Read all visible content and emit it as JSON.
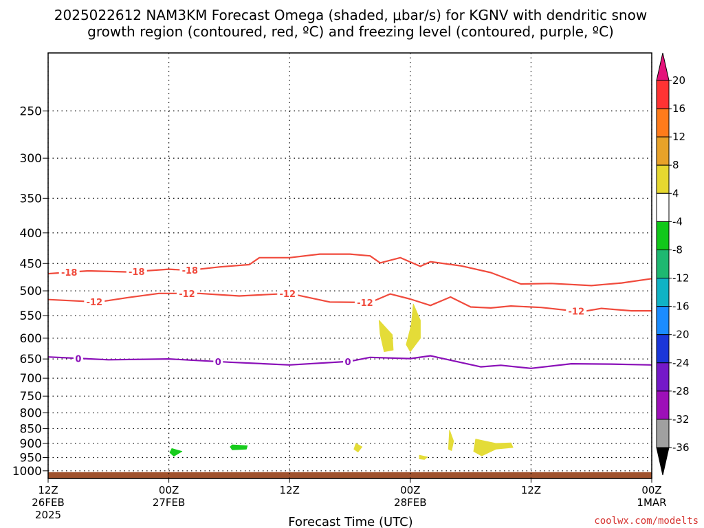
{
  "title_line1": "2025022612 NAM3KM Forecast Omega (shaded, μbar/s) for KGNV with dendritic snow",
  "title_line2": "growth region (contoured, red, ºC) and freezing level (contoured, purple, ºC)",
  "credit": "coolwx.com/modelts",
  "colors": {
    "red_contour": "#f04a3c",
    "purple_contour": "#8a0fb8",
    "ground": "#a0522d",
    "yellow": "#e4dc38",
    "green": "#17cc1c"
  },
  "chart_data": {
    "type": "time-pressure cross section",
    "xlabel": "Forecast Time (UTC)",
    "x_ticks": [
      {
        "hour": 0,
        "line1": "12Z",
        "line2": "26FEB",
        "line3": "2025"
      },
      {
        "hour": 12,
        "line1": "00Z",
        "line2": "27FEB",
        "line3": ""
      },
      {
        "hour": 24,
        "line1": "12Z",
        "line2": "",
        "line3": ""
      },
      {
        "hour": 36,
        "line1": "00Z",
        "line2": "28FEB",
        "line3": ""
      },
      {
        "hour": 48,
        "line1": "12Z",
        "line2": "",
        "line3": ""
      },
      {
        "hour": 60,
        "line1": "00Z",
        "line2": "1MAR",
        "line3": ""
      }
    ],
    "xlim_hours": [
      0,
      60
    ],
    "y_ticks": [
      250,
      300,
      350,
      400,
      450,
      500,
      550,
      600,
      650,
      700,
      750,
      800,
      850,
      900,
      950,
      1000
    ],
    "ylim_hPa": [
      200,
      1030
    ],
    "y_scale": "log-pressure",
    "grid": "dotted at pressure ticks",
    "contours": [
      {
        "label": "-18",
        "color_key": "red_contour",
        "points": [
          [
            0,
            468
          ],
          [
            4,
            463
          ],
          [
            8,
            465
          ],
          [
            12,
            460
          ],
          [
            14,
            462
          ],
          [
            17,
            456
          ],
          [
            20,
            452
          ],
          [
            21,
            440
          ],
          [
            24,
            440
          ],
          [
            27,
            434
          ],
          [
            30,
            434
          ],
          [
            32,
            437
          ],
          [
            33,
            449
          ],
          [
            35,
            440
          ],
          [
            37,
            455
          ],
          [
            38,
            447
          ],
          [
            41,
            454
          ],
          [
            44,
            466
          ],
          [
            47,
            487
          ],
          [
            50,
            486
          ],
          [
            54,
            490
          ],
          [
            57,
            485
          ],
          [
            60,
            477
          ]
        ],
        "labels_at_hours": [
          2.1,
          8.8,
          14.1
        ]
      },
      {
        "label": "-12",
        "color_key": "red_contour",
        "points": [
          [
            0,
            517
          ],
          [
            5,
            522
          ],
          [
            8,
            513
          ],
          [
            11,
            505
          ],
          [
            15,
            505
          ],
          [
            19,
            510
          ],
          [
            24,
            505
          ],
          [
            28,
            522
          ],
          [
            32,
            523
          ],
          [
            34,
            506
          ],
          [
            36,
            516
          ],
          [
            38,
            529
          ],
          [
            40,
            512
          ],
          [
            42,
            532
          ],
          [
            44,
            534
          ],
          [
            46,
            530
          ],
          [
            49,
            533
          ],
          [
            53,
            542
          ],
          [
            55,
            535
          ],
          [
            58,
            540
          ],
          [
            60,
            540
          ]
        ],
        "labels_at_hours": [
          4.6,
          13.8,
          23.8,
          31.5,
          52.5
        ]
      },
      {
        "label": "0",
        "color_key": "purple_contour",
        "points": [
          [
            0,
            645
          ],
          [
            6,
            652
          ],
          [
            12,
            650
          ],
          [
            18,
            658
          ],
          [
            24,
            665
          ],
          [
            30,
            656
          ],
          [
            32,
            646
          ],
          [
            36,
            649
          ],
          [
            38,
            642
          ],
          [
            40,
            653
          ],
          [
            43,
            670
          ],
          [
            45,
            666
          ],
          [
            48,
            674
          ],
          [
            52,
            662
          ],
          [
            56,
            663
          ],
          [
            60,
            665
          ]
        ],
        "labels_at_hours": [
          3.0,
          16.9,
          29.8
        ]
      }
    ],
    "omega_regions": [
      {
        "color_key": "yellow",
        "points": [
          [
            32.9,
            560
          ],
          [
            34.2,
            592
          ],
          [
            34.3,
            628
          ],
          [
            33.4,
            632
          ],
          [
            33.0,
            590
          ]
        ]
      },
      {
        "color_key": "yellow",
        "points": [
          [
            36.3,
            526
          ],
          [
            37.0,
            560
          ],
          [
            37.0,
            600
          ],
          [
            36.0,
            632
          ],
          [
            35.6,
            615
          ],
          [
            36.1,
            570
          ]
        ]
      },
      {
        "color_key": "green",
        "points": [
          [
            12.3,
            918
          ],
          [
            13.3,
            928
          ],
          [
            12.5,
            945
          ],
          [
            12.1,
            932
          ]
        ]
      },
      {
        "color_key": "green",
        "points": [
          [
            18.3,
            905
          ],
          [
            19.8,
            908
          ],
          [
            19.7,
            920
          ],
          [
            18.3,
            922
          ],
          [
            18.1,
            912
          ]
        ]
      },
      {
        "color_key": "yellow",
        "points": [
          [
            30.6,
            900
          ],
          [
            31.2,
            912
          ],
          [
            30.8,
            930
          ],
          [
            30.4,
            920
          ]
        ]
      },
      {
        "color_key": "yellow",
        "points": [
          [
            36.9,
            942
          ],
          [
            37.7,
            948
          ],
          [
            37.4,
            957
          ],
          [
            36.9,
            955
          ]
        ]
      },
      {
        "color_key": "yellow",
        "points": [
          [
            39.9,
            855
          ],
          [
            40.3,
            892
          ],
          [
            40.1,
            925
          ],
          [
            39.8,
            920
          ]
        ]
      },
      {
        "color_key": "yellow",
        "points": [
          [
            42.5,
            885
          ],
          [
            44.5,
            900
          ],
          [
            46.0,
            898
          ],
          [
            46.2,
            914
          ],
          [
            44.5,
            920
          ],
          [
            43.1,
            944
          ],
          [
            42.3,
            928
          ]
        ]
      }
    ],
    "ground_top_hPa": 1005,
    "colorbar": {
      "ticks": [
        "20",
        "16",
        "12",
        "8",
        "4",
        "-4",
        "-8",
        "-12",
        "-16",
        "-20",
        "-24",
        "-28",
        "-32",
        "-36"
      ],
      "colors": [
        "#ff3333",
        "#ff7b1a",
        "#e8a229",
        "#e6d830",
        "#ffffff",
        "#11c81a",
        "#1eb871",
        "#10b3c5",
        "#1a8cff",
        "#1a36d9",
        "#7419c8",
        "#9d10b8",
        "#a0a0a0"
      ],
      "top_triangle_color": "#e4137a",
      "bottom_triangle_color": "#000000"
    }
  }
}
